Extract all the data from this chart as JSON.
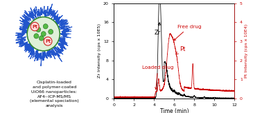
{
  "xlabel": "Time (min)",
  "ylabel_left": "Zr Intensity (cps x 10E5)",
  "ylabel_right": "Pt Intensity (cps x 10E4)",
  "xlim": [
    0,
    12
  ],
  "ylim_left": [
    0,
    20
  ],
  "ylim_right": [
    0,
    5
  ],
  "yticks_left": [
    0,
    4,
    8,
    12,
    16,
    20
  ],
  "yticks_right": [
    0,
    1,
    2,
    3,
    4,
    5
  ],
  "xticks": [
    0,
    2,
    4,
    6,
    8,
    10,
    12
  ],
  "zr_color": "#000000",
  "pt_color": "#cc0000",
  "label_text_left": "Cisplatin-loaded\nand polymer-coated\nUiO66 nanoparticles:\nAF4--ICP-MS/MS\n(elemental speciation)\nanalysis",
  "annotation_zr": "Zr",
  "annotation_pt": "Pt",
  "annotation_free": "Free drug",
  "annotation_loaded": "Loaded drug",
  "bg_color": "#f5f0eb"
}
